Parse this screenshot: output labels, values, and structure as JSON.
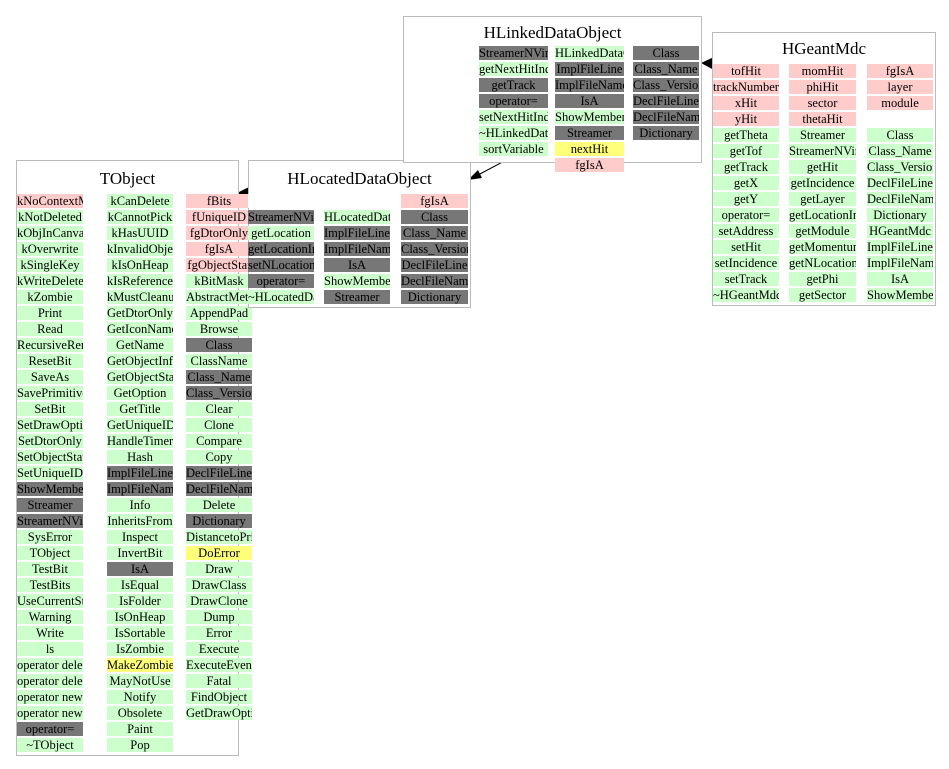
{
  "boxes": [
    {
      "id": "tobject",
      "title": "TObject",
      "columns": [
        [
          "p:kNoContextMenu",
          "g:kNotDeleted",
          "g:kObjInCanvas",
          "g:kOverwrite",
          "g:kSingleKey",
          "g:kWriteDelete",
          "g:kZombie",
          "g:Print",
          "g:Read",
          "g:RecursiveRemove",
          "g:ResetBit",
          "g:SaveAs",
          "g:SavePrimitive",
          "g:SetBit",
          "g:SetDrawOption",
          "g:SetDtorOnly",
          "g:SetObjectStat",
          "g:SetUniqueID",
          "d:ShowMembers",
          "d:Streamer",
          "d:StreamerNVirtual",
          "g:SysError",
          "g:TObject",
          "g:TestBit",
          "g:TestBits",
          "g:UseCurrentStyle",
          "g:Warning",
          "g:Write",
          "g:ls",
          "g:operator delete",
          "g:operator delete[]",
          "g:operator new",
          "g:operator new[]",
          "d:operator=",
          "g:~TObject"
        ],
        [
          "g:kCanDelete",
          "g:kCannotPick",
          "g:kHasUUID",
          "g:kInvalidObject",
          "g:kIsOnHeap",
          "g:kIsReferenced",
          "g:kMustCleanup",
          "g:GetDtorOnly",
          "g:GetIconName",
          "g:GetName",
          "g:GetObjectInfo",
          "g:GetObjectStat",
          "g:GetOption",
          "g:GetTitle",
          "g:GetUniqueID",
          "g:HandleTimer",
          "g:Hash",
          "d:ImplFileLine",
          "d:ImplFileName",
          "g:Info",
          "g:InheritsFrom",
          "g:Inspect",
          "g:InvertBit",
          "d:IsA",
          "g:IsEqual",
          "g:IsFolder",
          "g:IsOnHeap",
          "g:IsSortable",
          "g:IsZombie",
          "y:MakeZombie",
          "g:MayNotUse",
          "g:Notify",
          "g:Obsolete",
          "g:Paint",
          "g:Pop"
        ],
        [
          "p:fBits",
          "p:fUniqueID",
          "p:fgDtorOnly",
          "p:fgIsA",
          "p:fgObjectStat",
          "g:kBitMask",
          "g:AbstractMethod",
          "g:AppendPad",
          "g:Browse",
          "d:Class",
          "g:ClassName",
          "d:Class_Name",
          "d:Class_Version",
          "g:Clear",
          "g:Clone",
          "g:Compare",
          "g:Copy",
          "d:DeclFileLine",
          "d:DeclFileName",
          "g:Delete",
          "d:Dictionary",
          "g:DistancetoPrimitive",
          "y:DoError",
          "g:Draw",
          "g:DrawClass",
          "g:DrawClone",
          "g:Dump",
          "g:Error",
          "g:Execute",
          "g:ExecuteEvent",
          "g:Fatal",
          "g:FindObject",
          "g:GetDrawOption"
        ]
      ]
    },
    {
      "id": "hlocateddataobject",
      "title": "HLocatedDataObject",
      "columns": [
        [
          "w:",
          "d:StreamerNVirtual",
          "g:getLocation",
          "d:getLocationIndex",
          "d:setNLocationIndex",
          "d:operator=",
          "g:~HLocatedDataObject"
        ],
        [
          "w:",
          "g:HLocatedDataObject",
          "d:ImplFileLine",
          "d:ImplFileName",
          "d:IsA",
          "g:ShowMembers",
          "d:Streamer"
        ],
        [
          "p:fgIsA",
          "d:Class",
          "d:Class_Name",
          "d:Class_Version",
          "d:DeclFileLine",
          "d:DeclFileName",
          "d:Dictionary"
        ]
      ]
    },
    {
      "id": "hlinkeddataobject",
      "title": "HLinkedDataObject",
      "columns": [
        [
          "d:StreamerNVirtual",
          "g:getNextHitIndex",
          "d:getTrack",
          "d:operator=",
          "g:setNextHitIndex",
          "g:~HLinkedDataObject",
          "g:sortVariable"
        ],
        [
          "g:HLinkedDataObject",
          "d:ImplFileLine",
          "d:ImplFileName",
          "d:IsA",
          "g:ShowMembers",
          "d:Streamer",
          "y:nextHit",
          "p:fgIsA"
        ],
        [
          "d:Class",
          "d:Class_Name",
          "d:Class_Version",
          "d:DeclFileLine",
          "d:DeclFileName",
          "d:Dictionary"
        ]
      ]
    },
    {
      "id": "hgeantmdc",
      "title": "HGeantMdc",
      "columns": [
        [
          "p:tofHit",
          "p:trackNumber",
          "p:xHit",
          "p:yHit",
          "g:getTheta",
          "g:getTof",
          "g:getTrack",
          "g:getX",
          "g:getY",
          "g:operator=",
          "g:setAddress",
          "g:setHit",
          "g:setIncidence",
          "g:setTrack",
          "g:~HGeantMdc"
        ],
        [
          "p:momHit",
          "p:phiHit",
          "p:sector",
          "p:thetaHit",
          "g:Streamer",
          "g:StreamerNVirtual",
          "g:getHit",
          "g:getIncidence",
          "g:getLayer",
          "g:getLocationIndex",
          "g:getModule",
          "g:getMomentum",
          "g:getNLocationIndex",
          "g:getPhi",
          "g:getSector"
        ],
        [
          "p:fgIsA",
          "p:layer",
          "p:module",
          "w:",
          "g:Class",
          "g:Class_Name",
          "g:Class_Version",
          "g:DeclFileLine",
          "g:DeclFileName",
          "g:Dictionary",
          "g:HGeantMdc",
          "g:ImplFileLine",
          "g:ImplFileName",
          "g:IsA",
          "g:ShowMembers"
        ]
      ]
    }
  ]
}
